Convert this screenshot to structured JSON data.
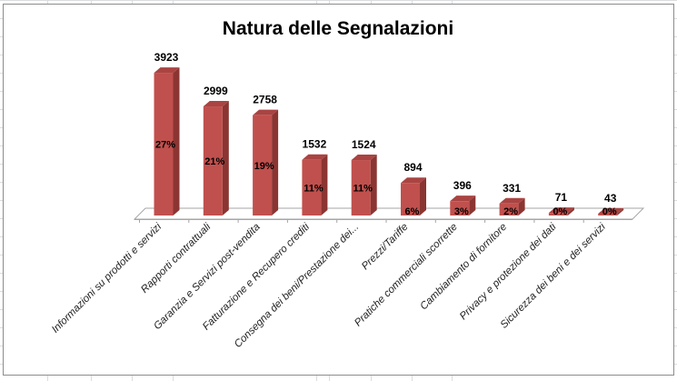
{
  "chart_data": {
    "type": "bar",
    "title": "Natura delle Segnalazioni",
    "categories": [
      "Informazioni su prodotti e servizi",
      "Rapporti contrattuali",
      "Garanzia e Servizi post-vendita",
      "Fatturazione e Recupero crediti",
      "Consegna dei beni/Prestazione dei...",
      "Prezzi/Tariffe",
      "Pratiche commerciali scorrette",
      "Cambiamento di fornitore",
      "Privacy e protezione dei dati",
      "Sicurezza dei beni e dei servizi"
    ],
    "values": [
      3923,
      2999,
      2758,
      1532,
      1524,
      894,
      396,
      331,
      71,
      43
    ],
    "percent_labels": [
      "27%",
      "21%",
      "19%",
      "11%",
      "11%",
      "6%",
      "3%",
      "2%",
      "0%",
      "0%"
    ],
    "ylim": [
      0,
      4000
    ],
    "grid": false,
    "legend": "none",
    "bar_color": "#c0504d"
  }
}
